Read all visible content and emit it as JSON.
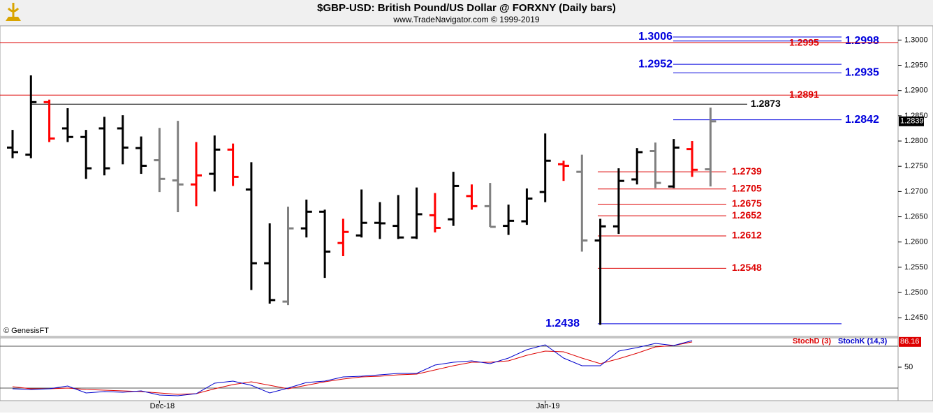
{
  "chart_data": {
    "type": "ohlc",
    "title": "$GBP-USD:  British Pound/US Dollar @ FORXNY  (Daily bars)",
    "subtitle": "www.TradeNavigator.com © 1999-2019",
    "copyright": "© GenesisFT",
    "categories": [
      null,
      null,
      null,
      null,
      null,
      null,
      null,
      null,
      "Dec-18",
      null,
      null,
      null,
      null,
      null,
      null,
      null,
      null,
      null,
      null,
      null,
      null,
      null,
      null,
      null,
      null,
      null,
      null,
      null,
      null,
      "Jan-19",
      null,
      null,
      null,
      null,
      null,
      null,
      null,
      null,
      null
    ],
    "open": [
      1.2787,
      1.2773,
      1.2877,
      1.2825,
      1.2808,
      1.2825,
      1.2825,
      1.2786,
      1.2762,
      1.2722,
      1.2714,
      1.2735,
      1.2783,
      1.2704,
      1.2558,
      1.2482,
      1.2627,
      1.266,
      1.2598,
      1.2613,
      1.2638,
      1.2632,
      1.2609,
      1.2653,
      1.2645,
      1.2691,
      1.2671,
      1.2632,
      1.2641,
      1.2699,
      1.2754,
      1.2739,
      1.2603,
      1.2631,
      1.2724,
      1.278,
      1.271,
      1.2784,
      1.2744
    ],
    "high": [
      1.2822,
      1.293,
      1.2882,
      1.2865,
      1.2822,
      1.2848,
      1.2851,
      1.2809,
      1.2826,
      1.284,
      1.2798,
      1.2811,
      1.2795,
      1.2758,
      1.2637,
      1.267,
      1.2684,
      1.2664,
      1.2646,
      1.2704,
      1.2679,
      1.2693,
      1.2708,
      1.2697,
      1.2739,
      1.2714,
      1.2717,
      1.2674,
      1.2706,
      1.2815,
      1.2761,
      1.2773,
      1.2646,
      1.2746,
      1.2786,
      1.2797,
      1.2804,
      1.28,
      1.2866
    ],
    "low": [
      1.2766,
      1.2766,
      1.2798,
      1.2798,
      1.2725,
      1.2732,
      1.2754,
      1.2735,
      1.2699,
      1.2659,
      1.2671,
      1.27,
      1.2711,
      1.2505,
      1.2478,
      1.2475,
      1.2609,
      1.2529,
      1.2572,
      1.2609,
      1.2606,
      1.2606,
      1.2606,
      1.2619,
      1.2632,
      1.2664,
      1.263,
      1.2614,
      1.2634,
      1.2679,
      1.2721,
      1.2581,
      1.2436,
      1.2616,
      1.2714,
      1.2707,
      1.2707,
      1.2729,
      1.271
    ],
    "close": [
      1.2778,
      1.2877,
      1.2805,
      1.2808,
      1.2746,
      1.2746,
      1.2787,
      1.2751,
      1.2725,
      1.2714,
      1.2732,
      1.2783,
      1.2729,
      1.2558,
      1.2485,
      1.2627,
      1.266,
      1.2581,
      1.262,
      1.2638,
      1.2637,
      1.2609,
      1.2655,
      1.2628,
      1.2711,
      1.2671,
      1.263,
      1.2642,
      1.2686,
      1.2761,
      1.2751,
      1.2603,
      1.2631,
      1.2721,
      1.2778,
      1.2717,
      1.2787,
      1.2743,
      1.2839
    ],
    "bar_colors": [
      "#000000",
      "#000000",
      "#ff0000",
      "#000000",
      "#000000",
      "#000000",
      "#000000",
      "#000000",
      "#808080",
      "#808080",
      "#ff0000",
      "#000000",
      "#ff0000",
      "#000000",
      "#000000",
      "#808080",
      "#000000",
      "#000000",
      "#ff0000",
      "#000000",
      "#000000",
      "#000000",
      "#000000",
      "#ff0000",
      "#000000",
      "#ff0000",
      "#808080",
      "#000000",
      "#000000",
      "#000000",
      "#ff0000",
      "#808080",
      "#000000",
      "#000000",
      "#000000",
      "#808080",
      "#000000",
      "#ff0000",
      "#808080"
    ],
    "last_price_label": "1.2839",
    "ylim": [
      1.2413,
      1.3024
    ],
    "yticks": [
      {
        "value": 1.245,
        "label": "1.2450"
      },
      {
        "value": 1.25,
        "label": "1.2500"
      },
      {
        "value": 1.255,
        "label": "1.2550"
      },
      {
        "value": 1.26,
        "label": "1.2600"
      },
      {
        "value": 1.265,
        "label": "1.2650"
      },
      {
        "value": 1.27,
        "label": "1.2700"
      },
      {
        "value": 1.275,
        "label": "1.2750"
      },
      {
        "value": 1.28,
        "label": "1.2800"
      },
      {
        "value": 1.285,
        "label": "1.2850"
      },
      {
        "value": 1.29,
        "label": "1.2900"
      },
      {
        "value": 1.295,
        "label": "1.2950"
      },
      {
        "value": 1.3,
        "label": "1.3000"
      }
    ],
    "levels": [
      {
        "value": 1.3006,
        "color": "#0000dd"
      },
      {
        "value": 1.2998,
        "color": "#0000dd"
      },
      {
        "value": 1.2995,
        "color": "#dd0000"
      },
      {
        "value": 1.2952,
        "color": "#0000dd"
      },
      {
        "value": 1.2935,
        "color": "#0000dd"
      },
      {
        "value": 1.2891,
        "color": "#dd0000"
      },
      {
        "value": 1.2873,
        "color": "#000000"
      },
      {
        "value": 1.2842,
        "color": "#0000dd"
      },
      {
        "value": 1.2739,
        "color": "#dd0000"
      },
      {
        "value": 1.2705,
        "color": "#dd0000"
      },
      {
        "value": 1.2675,
        "color": "#dd0000"
      },
      {
        "value": 1.2652,
        "color": "#dd0000"
      },
      {
        "value": 1.2612,
        "color": "#dd0000"
      },
      {
        "value": 1.2548,
        "color": "#dd0000"
      },
      {
        "value": 1.2438,
        "color": "#0000dd"
      }
    ],
    "stochastic": {
      "ylim": [
        2,
        92
      ],
      "yticks": [
        50
      ],
      "reference_lines": [
        20,
        80
      ],
      "value_label": "86.16",
      "series": [
        {
          "name": "StochD (3)",
          "color": "#dd0000",
          "values": [
            22,
            19,
            19,
            20,
            18,
            17,
            16,
            15,
            13,
            11,
            12,
            19,
            25,
            29,
            24,
            19,
            24,
            29,
            33,
            36,
            37,
            39,
            40,
            46,
            52,
            57,
            57,
            59,
            67,
            73,
            72,
            63,
            55,
            62,
            70,
            79,
            81,
            86.16
          ]
        },
        {
          "name": "StochK (14,3)",
          "color": "#0000cc",
          "values": [
            19,
            18,
            19,
            23,
            13,
            15,
            14,
            16,
            10,
            9,
            12,
            27,
            30,
            24,
            13,
            20,
            28,
            30,
            36,
            37,
            39,
            41,
            41,
            53,
            57,
            59,
            55,
            63,
            75,
            82,
            63,
            52,
            52,
            73,
            78,
            84,
            81,
            88
          ]
        }
      ]
    }
  }
}
